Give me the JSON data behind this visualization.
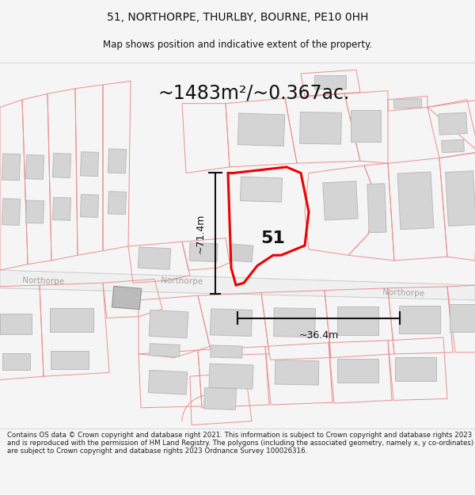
{
  "title_line1": "51, NORTHORPE, THURLBY, BOURNE, PE10 0HH",
  "title_line2": "Map shows position and indicative extent of the property.",
  "area_text": "~1483m²/~0.367ac.",
  "label_51": "51",
  "dim_height": "~71.4m",
  "dim_width": "~36.4m",
  "road_label_left": "Northorpe",
  "road_label_mid": "Northorpe",
  "road_label_right": "Northorpe",
  "footer_text": "Contains OS data © Crown copyright and database right 2021. This information is subject to Crown copyright and database rights 2023 and is reproduced with the permission of HM Land Registry. The polygons (including the associated geometry, namely x, y co-ordinates) are subject to Crown copyright and database rights 2023 Ordnance Survey 100026316.",
  "bg_color": "#f5f5f5",
  "map_bg": "#ffffff",
  "outline_color": "#e89090",
  "building_fill": "#d4d4d4",
  "building_edge": "#bbbbbb",
  "highlight_color": "#ee0000",
  "dim_line_color": "#111111",
  "text_color": "#111111",
  "road_text_color": "#999999",
  "road_fill": "#eeeeee",
  "road_line": "#cccccc"
}
